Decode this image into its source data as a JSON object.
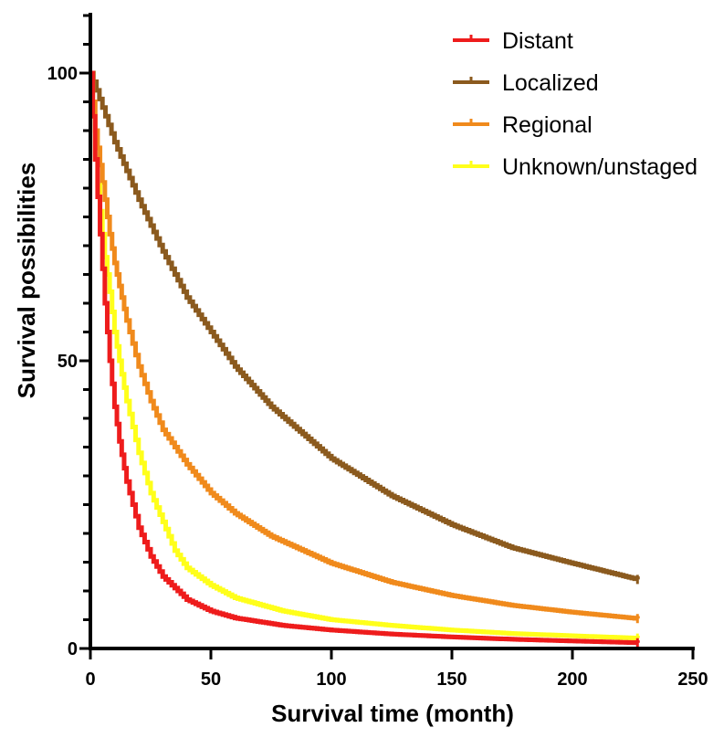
{
  "chart_data": {
    "type": "line",
    "title": "",
    "xlabel": "Survival time (month)",
    "ylabel": "Survival possibilities",
    "xlim": [
      0,
      250
    ],
    "ylim": [
      0,
      110
    ],
    "x_ticks": [
      0,
      50,
      100,
      150,
      200,
      250
    ],
    "y_ticks": [
      0,
      50,
      100
    ],
    "grid": false,
    "legend_position": "top-right",
    "step": true,
    "series": [
      {
        "name": "Distant",
        "color": "#ee1c1c",
        "x": [
          0,
          2,
          4,
          6,
          8,
          10,
          12,
          15,
          20,
          25,
          30,
          40,
          50,
          60,
          80,
          100,
          125,
          150,
          175,
          200,
          227
        ],
        "y": [
          100,
          85,
          72,
          60,
          50,
          42,
          36,
          29,
          21,
          16,
          12.5,
          8.5,
          6.5,
          5.3,
          4.0,
          3.2,
          2.5,
          2.0,
          1.6,
          1.3,
          1.0
        ]
      },
      {
        "name": "Localized",
        "color": "#8b5a1e",
        "x": [
          0,
          5,
          10,
          20,
          30,
          40,
          50,
          60,
          75,
          100,
          125,
          150,
          175,
          200,
          227
        ],
        "y": [
          100,
          94,
          88,
          78,
          69,
          61,
          55,
          49,
          42,
          33,
          26.5,
          21.5,
          17.5,
          14.8,
          12.0
        ]
      },
      {
        "name": "Regional",
        "color": "#f08a1c",
        "x": [
          0,
          2,
          4,
          6,
          8,
          10,
          12,
          15,
          20,
          25,
          30,
          40,
          50,
          60,
          75,
          100,
          125,
          150,
          175,
          200,
          227
        ],
        "y": [
          100,
          90,
          84,
          78,
          72,
          67,
          63,
          57,
          49,
          43,
          38,
          32,
          27,
          23.5,
          19.5,
          14.8,
          11.5,
          9.2,
          7.5,
          6.3,
          5.2
        ]
      },
      {
        "name": "Unknown/unstaged",
        "color": "#ffff1a",
        "x": [
          0,
          2,
          4,
          6,
          8,
          10,
          12,
          15,
          20,
          25,
          30,
          35,
          40,
          50,
          60,
          80,
          100,
          125,
          150,
          175,
          200,
          227
        ],
        "y": [
          100,
          85,
          76,
          68,
          62,
          55,
          50,
          43,
          34,
          27,
          22,
          17,
          14,
          11,
          8.8,
          6.5,
          5.0,
          4.0,
          3.2,
          2.6,
          2.2,
          1.8
        ]
      }
    ]
  }
}
